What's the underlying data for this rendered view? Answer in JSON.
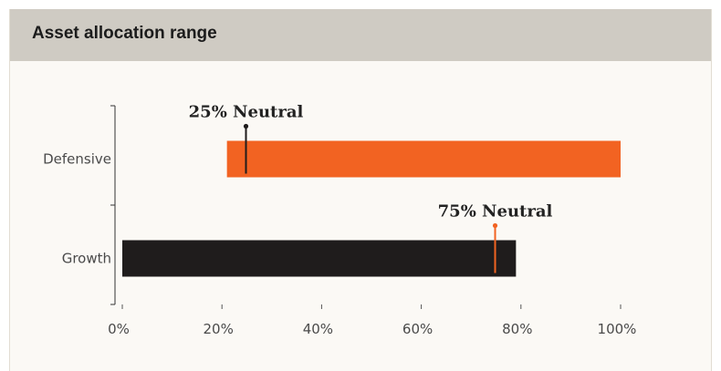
{
  "header": {
    "title": "Asset allocation range"
  },
  "colors": {
    "header_bg": "#cfcbc3",
    "card_bg": "#fbf9f5",
    "defensive": "#f26322",
    "growth": "#1f1c1c"
  },
  "chart_data": {
    "type": "bar",
    "orientation": "horizontal",
    "title": "Asset allocation range",
    "xlabel": "",
    "ylabel": "",
    "xlim": [
      0,
      100
    ],
    "xticks": [
      "0%",
      "20%",
      "40%",
      "60%",
      "80%",
      "100%"
    ],
    "grid": false,
    "categories": [
      "Defensive",
      "Growth"
    ],
    "ranges": [
      {
        "category": "Defensive",
        "start": 21,
        "end": 100,
        "color": "#f26322"
      },
      {
        "category": "Growth",
        "start": 0,
        "end": 79,
        "color": "#1f1c1c"
      }
    ],
    "annotations": [
      {
        "category": "Defensive",
        "value": 25,
        "label": "25% Neutral",
        "color": "#1f1c1c"
      },
      {
        "category": "Growth",
        "value": 75,
        "label": "75% Neutral",
        "color": "#f26322"
      }
    ]
  }
}
